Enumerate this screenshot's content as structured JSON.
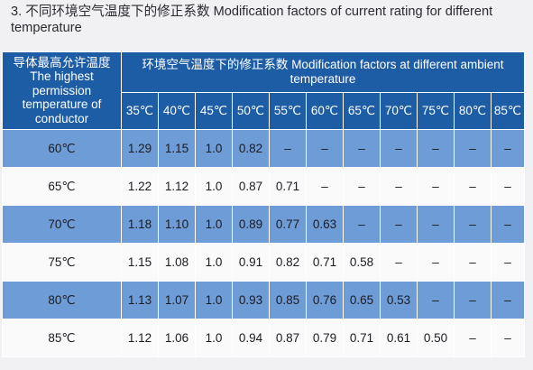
{
  "title": "3.  不同环境空气温度下的修正系数  Modification factors of current rating for different temperature",
  "table": {
    "corner_header": "导体最高允许温度 The highest permission temperature of conductor",
    "main_header": "环境空气温度下的修正系数  Modification factors at different ambient temperature",
    "ambient_temps": [
      "35℃",
      "40℃",
      "45℃",
      "50℃",
      "55℃",
      "60℃",
      "65℃",
      "70℃",
      "75℃",
      "80℃",
      "85℃"
    ],
    "rows": [
      {
        "conductor": "60℃",
        "values": [
          "1.29",
          "1.15",
          "1.0",
          "0.82",
          "–",
          "–",
          "–",
          "–",
          "–",
          "–",
          "–"
        ]
      },
      {
        "conductor": "65℃",
        "values": [
          "1.22",
          "1.12",
          "1.0",
          "0.87",
          "0.71",
          "–",
          "–",
          "–",
          "–",
          "–",
          "–"
        ]
      },
      {
        "conductor": "70℃",
        "values": [
          "1.18",
          "1.10",
          "1.0",
          "0.89",
          "0.77",
          "0.63",
          "–",
          "–",
          "–",
          "–",
          "–"
        ]
      },
      {
        "conductor": "75℃",
        "values": [
          "1.15",
          "1.08",
          "1.0",
          "0.91",
          "0.82",
          "0.71",
          "0.58",
          "–",
          "–",
          "–",
          "–"
        ]
      },
      {
        "conductor": "80℃",
        "values": [
          "1.13",
          "1.07",
          "1.0",
          "0.93",
          "0.85",
          "0.76",
          "0.65",
          "0.53",
          "–",
          "–",
          "–"
        ]
      },
      {
        "conductor": "85℃",
        "values": [
          "1.12",
          "1.06",
          "1.0",
          "0.94",
          "0.87",
          "0.79",
          "0.71",
          "0.61",
          "0.50",
          "–",
          "–"
        ]
      }
    ]
  },
  "colors": {
    "header_blue": "#1d5da6",
    "row_blue": "#6e9cd6",
    "row_white": "#fafafb"
  }
}
